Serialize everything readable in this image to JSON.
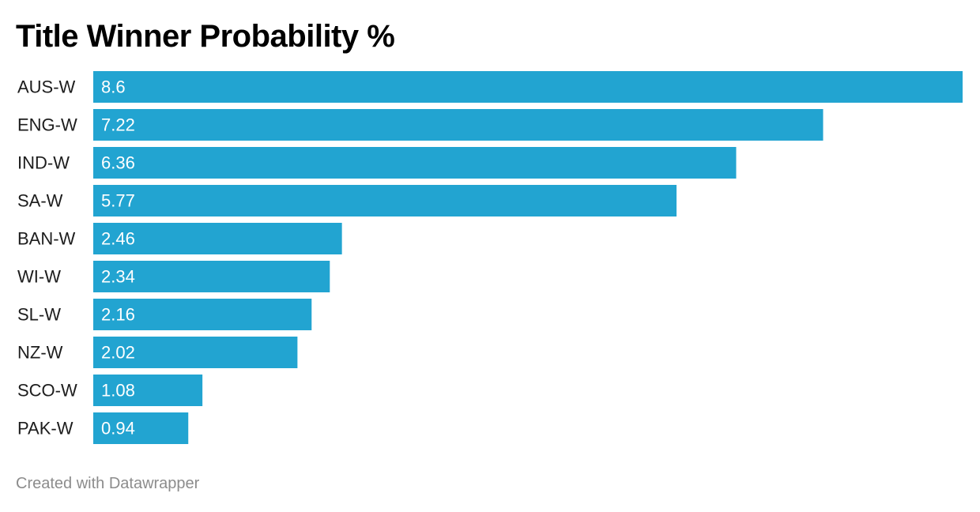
{
  "chart_data": {
    "type": "bar",
    "orientation": "horizontal",
    "title": "Title Winner Probability %",
    "categories": [
      "AUS-W",
      "ENG-W",
      "IND-W",
      "SA-W",
      "BAN-W",
      "WI-W",
      "SL-W",
      "NZ-W",
      "SCO-W",
      "PAK-W"
    ],
    "values": [
      8.6,
      7.22,
      6.36,
      5.77,
      2.46,
      2.34,
      2.16,
      2.02,
      1.08,
      0.94
    ],
    "xlim": [
      0,
      8.6
    ],
    "grid": false,
    "bar_color": "#22a4d1",
    "value_label_color": "#ffffff"
  },
  "footer": {
    "credit": "Created with Datawrapper"
  }
}
